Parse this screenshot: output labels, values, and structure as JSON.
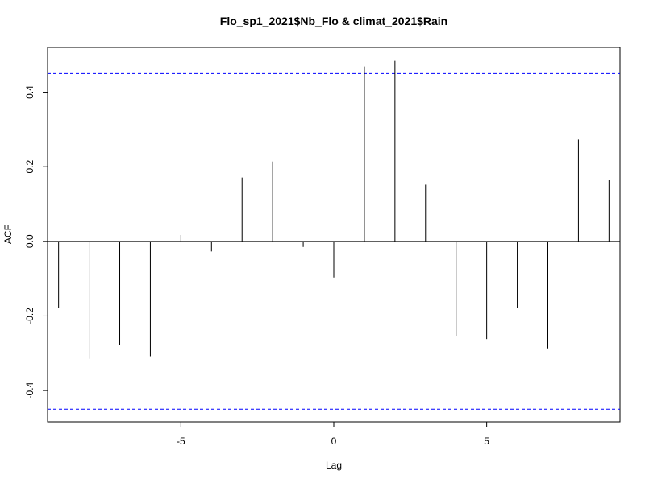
{
  "chart_data": {
    "type": "bar",
    "title": "Flo_sp1_2021$Nb_Flo & climat_2021$Rain",
    "xlabel": "Lag",
    "ylabel": "ACF",
    "x": [
      -9,
      -8,
      -7,
      -6,
      -5,
      -4,
      -3,
      -2,
      -1,
      0,
      1,
      2,
      3,
      4,
      5,
      6,
      7,
      8,
      9
    ],
    "values": [
      -0.178,
      -0.315,
      -0.277,
      -0.308,
      0.017,
      -0.027,
      0.171,
      0.214,
      -0.015,
      -0.097,
      0.469,
      0.484,
      0.152,
      -0.253,
      -0.262,
      -0.178,
      -0.287,
      0.273,
      0.164
    ],
    "xlim": [
      -9.36,
      9.36
    ],
    "ylim": [
      -0.484,
      0.52
    ],
    "x_ticks": [
      -5,
      0,
      5
    ],
    "x_tick_labels": [
      "-5",
      "0",
      "5"
    ],
    "y_ticks": [
      -0.4,
      -0.2,
      0.0,
      0.2,
      0.4
    ],
    "y_tick_labels": [
      "-0.4",
      "-0.2",
      "0.0",
      "0.2",
      "0.4"
    ],
    "confidence_bound": 0.45,
    "bound_color": "#0000ff",
    "zero_line": true,
    "grid": false
  }
}
